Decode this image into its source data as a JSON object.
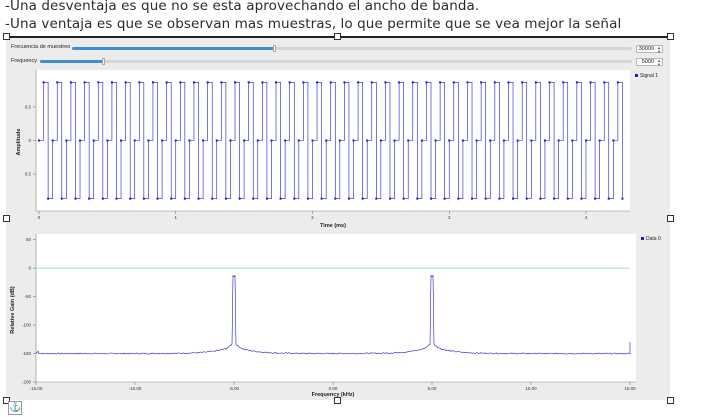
{
  "notes": {
    "line1": "-Una desventaja es que no se esta aprovechando el ancho de banda.",
    "line2": "-Una ventaja es que se observan mas muestras, lo que permite que se vea mejor la señal"
  },
  "controls": {
    "sample_rate": {
      "label": "Frecuencia de muestreo",
      "value": "30000",
      "slider_fraction": 0.36
    },
    "frequency": {
      "label": "Frequency",
      "value": "5000",
      "slider_fraction": 0.107
    }
  },
  "anchor_icon": "anchor-icon",
  "colors": {
    "trace": "#1c1cd0",
    "reference_line": "#8fd0d8",
    "slider_fill": "#3f8fcf",
    "panel_bg": "#ececec"
  },
  "chart_data": [
    {
      "type": "scatter",
      "title": "",
      "xlabel": "Time (ms)",
      "ylabel": "Amplitude",
      "xlim": [
        0,
        4.3
      ],
      "ylim": [
        -1.05,
        1.05
      ],
      "xticks": [
        "0",
        "1",
        "2",
        "3",
        "4"
      ],
      "yticks": [
        "0,5",
        "0",
        "0,5"
      ],
      "grid": false,
      "legend_position": "top-right",
      "series": [
        {
          "name": "Signal 1",
          "pattern_per_period": [
            0,
            0.866,
            -0.866
          ],
          "sample_rate_hz": 30000,
          "signal_freq_hz": 5000,
          "num_samples": 129
        }
      ]
    },
    {
      "type": "line",
      "title": "",
      "xlabel": "Frequency (kHz)",
      "ylabel": "Relative Gain (dB)",
      "xlim": [
        -15,
        15
      ],
      "ylim": [
        -200,
        60
      ],
      "xticks": [
        "-15.00",
        "-10.00",
        "-5.00",
        "0.00",
        "5.00",
        "10.00",
        "15.00"
      ],
      "yticks": [
        "50",
        "0",
        "-50",
        "-100",
        "-150",
        "-200"
      ],
      "reference_line_db": 0,
      "grid": false,
      "legend_position": "top-right",
      "series": [
        {
          "name": "Data 0",
          "noise_floor_db": -150,
          "peaks_khz": [
            -5,
            5
          ],
          "peak_db": -15
        }
      ]
    }
  ]
}
